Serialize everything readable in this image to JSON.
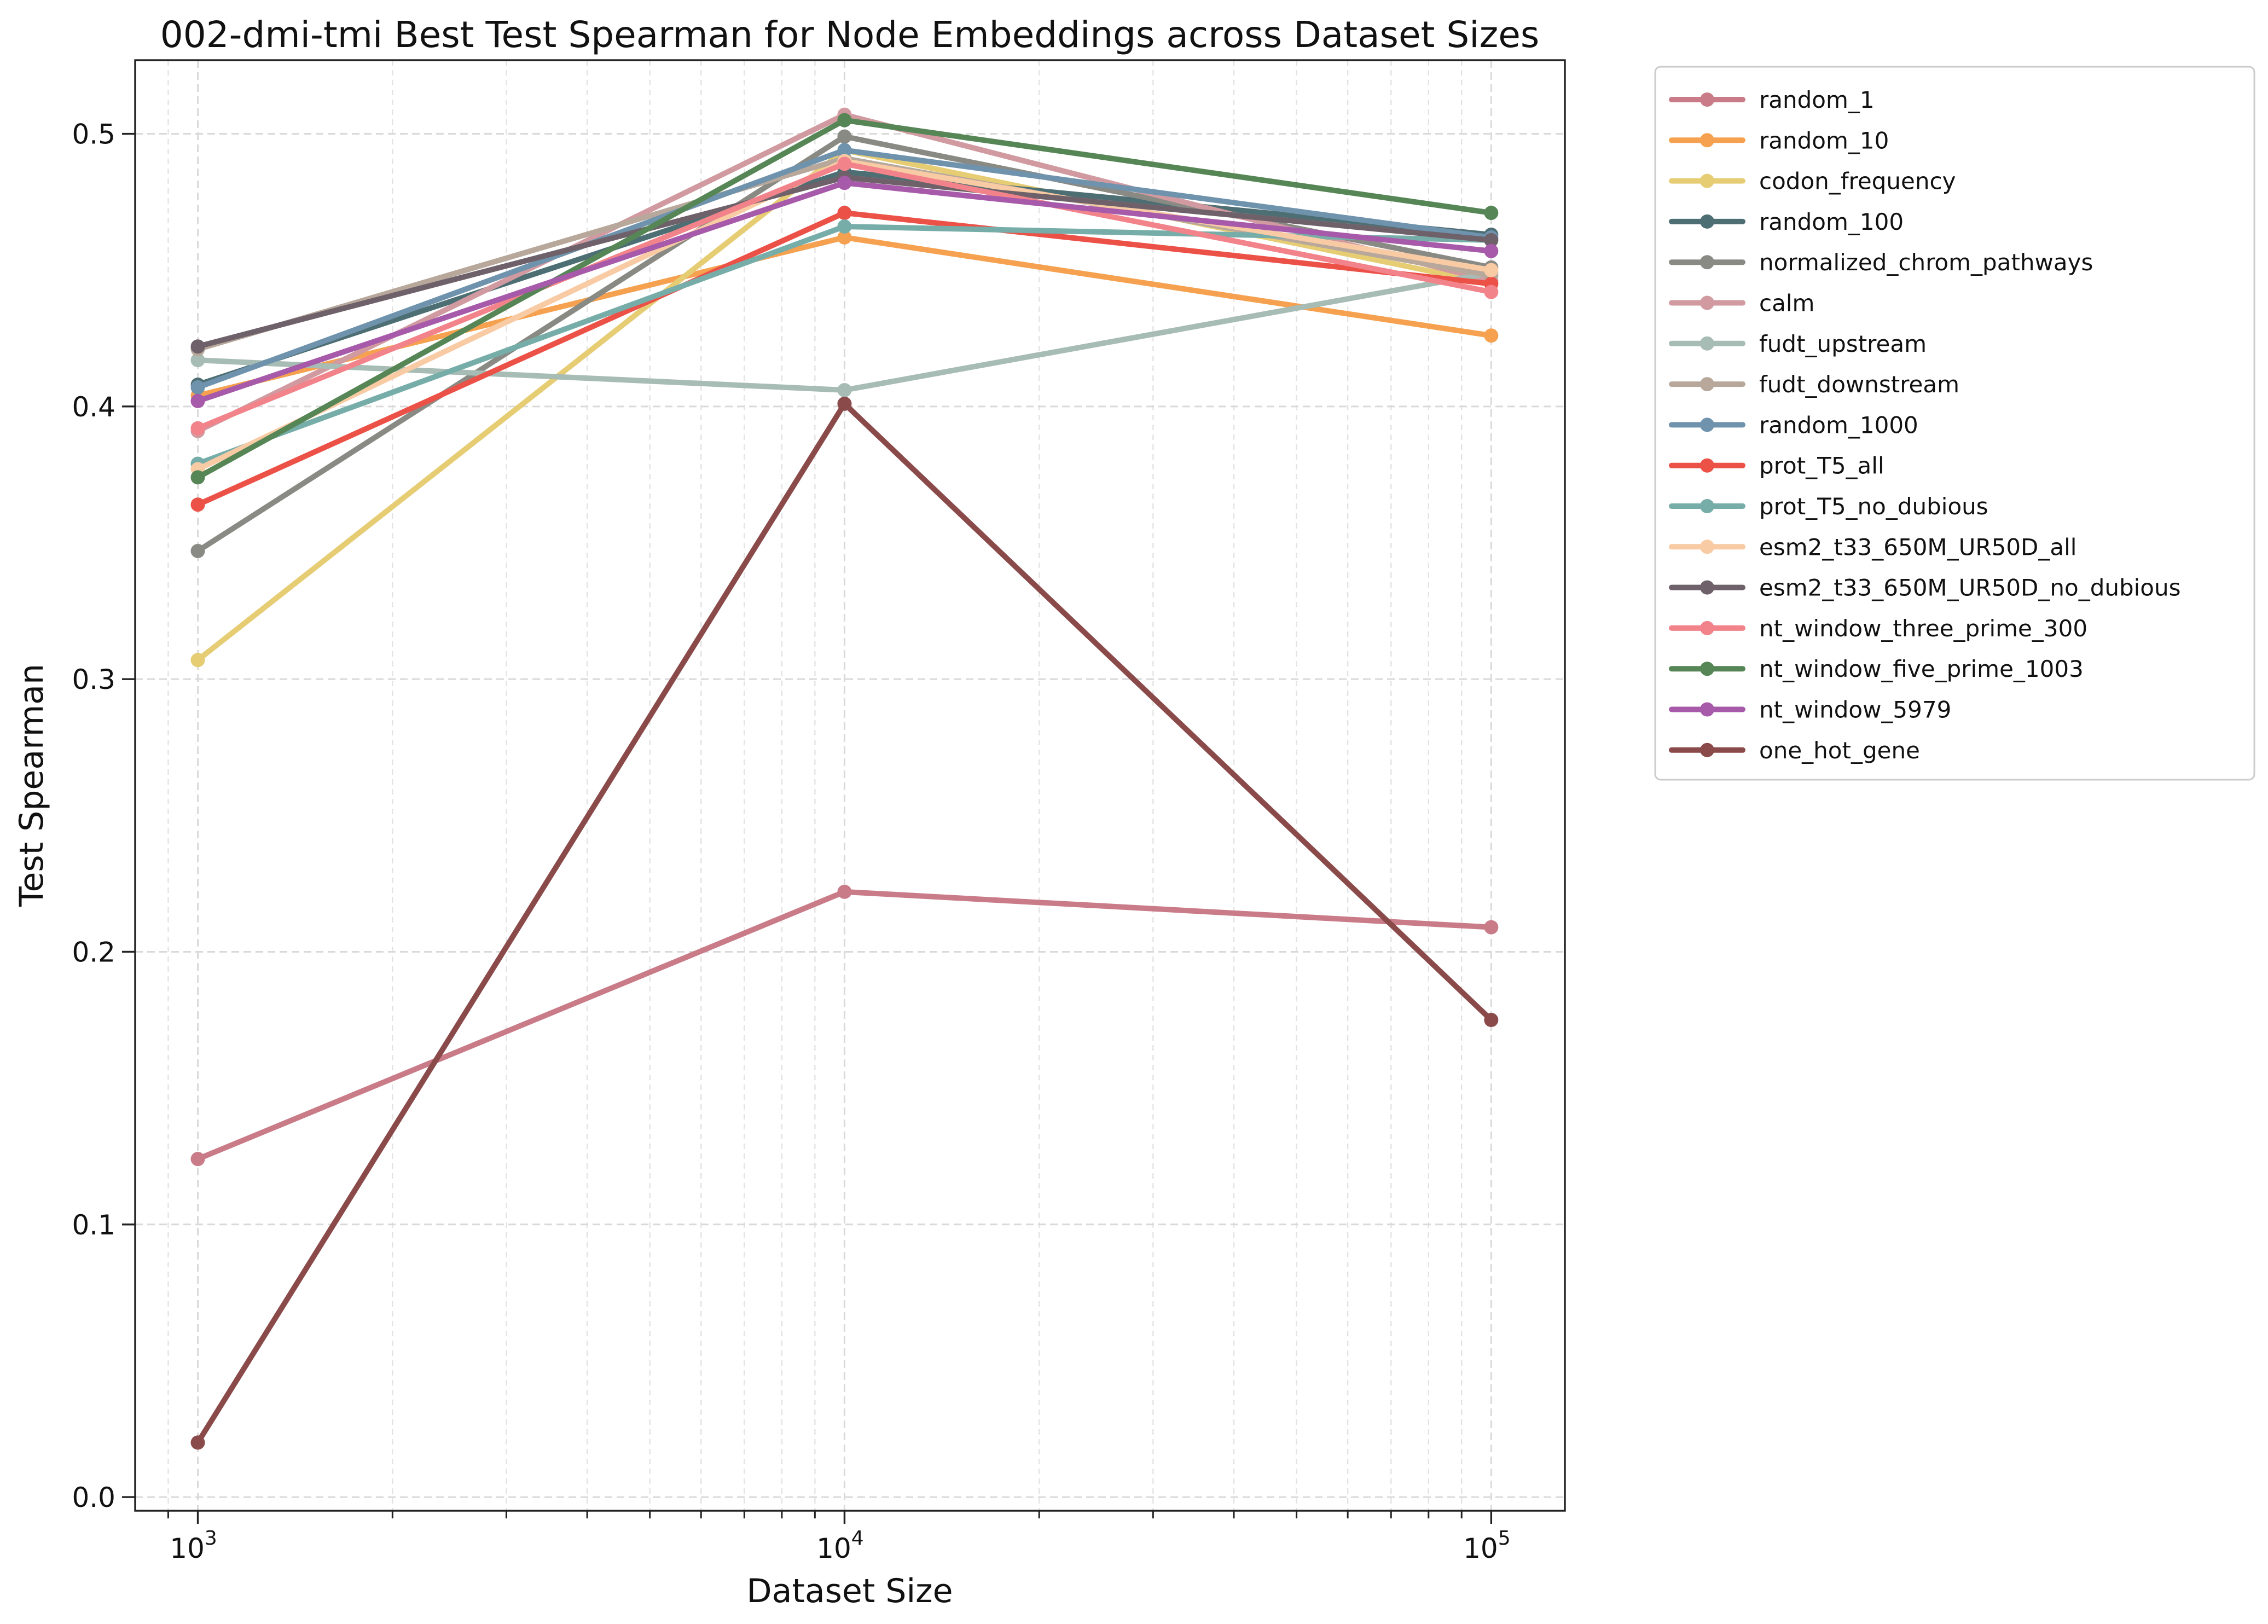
{
  "chart_data": {
    "type": "line",
    "title": "002-dmi-tmi Best Test Spearman for Node Embeddings across Dataset Sizes",
    "xlabel": "Dataset Size",
    "ylabel": "Test Spearman",
    "xscale": "log",
    "x": [
      1000,
      10000,
      100000
    ],
    "xlim": [
      800,
      130000
    ],
    "ylim": [
      -0.005,
      0.527
    ],
    "xticks": [
      {
        "value": 1000,
        "base": "10",
        "exp": "3"
      },
      {
        "value": 10000,
        "base": "10",
        "exp": "4"
      },
      {
        "value": 100000,
        "base": "10",
        "exp": "5"
      }
    ],
    "yticks": [
      {
        "value": 0.0,
        "label": "0.0"
      },
      {
        "value": 0.1,
        "label": "0.1"
      },
      {
        "value": 0.2,
        "label": "0.2"
      },
      {
        "value": 0.3,
        "label": "0.3"
      },
      {
        "value": 0.4,
        "label": "0.4"
      },
      {
        "value": 0.5,
        "label": "0.5"
      }
    ],
    "grid": true,
    "legend_position": "outside right, top",
    "series": [
      {
        "name": "random_1",
        "color": "#c97b88",
        "values": [
          0.124,
          0.222,
          0.209
        ]
      },
      {
        "name": "random_10",
        "color": "#f5a14f",
        "values": [
          0.404,
          0.462,
          0.426
        ]
      },
      {
        "name": "codon_frequency",
        "color": "#e6cd74",
        "values": [
          0.307,
          0.494,
          0.445
        ]
      },
      {
        "name": "random_100",
        "color": "#4d6e73",
        "values": [
          0.408,
          0.486,
          0.463
        ]
      },
      {
        "name": "normalized_chrom_pathways",
        "color": "#8a8a85",
        "values": [
          0.347,
          0.499,
          0.451
        ]
      },
      {
        "name": "calm",
        "color": "#d19aa0",
        "values": [
          0.391,
          0.507,
          0.446
        ]
      },
      {
        "name": "fudt_upstream",
        "color": "#a7bcb4",
        "values": [
          0.417,
          0.406,
          0.449
        ]
      },
      {
        "name": "fudt_downstream",
        "color": "#b7a89b",
        "values": [
          0.421,
          0.491,
          0.448
        ]
      },
      {
        "name": "random_1000",
        "color": "#6f93ad",
        "values": [
          0.407,
          0.494,
          0.462
        ]
      },
      {
        "name": "prot_T5_all",
        "color": "#ec5147",
        "values": [
          0.364,
          0.471,
          0.445
        ]
      },
      {
        "name": "prot_T5_no_dubious",
        "color": "#77ada9",
        "values": [
          0.379,
          0.466,
          0.461
        ]
      },
      {
        "name": "esm2_t33_650M_UR50D_all",
        "color": "#f8cba4",
        "values": [
          0.377,
          0.49,
          0.45
        ]
      },
      {
        "name": "esm2_t33_650M_UR50D_no_dubious",
        "color": "#6e6169",
        "values": [
          0.422,
          0.484,
          0.461
        ]
      },
      {
        "name": "nt_window_three_prime_300",
        "color": "#f2838a",
        "values": [
          0.392,
          0.489,
          0.442
        ]
      },
      {
        "name": "nt_window_five_prime_1003",
        "color": "#568656",
        "values": [
          0.374,
          0.505,
          0.471
        ]
      },
      {
        "name": "nt_window_5979",
        "color": "#a65aa9",
        "values": [
          0.402,
          0.482,
          0.457
        ]
      },
      {
        "name": "one_hot_gene",
        "color": "#8b4a4a",
        "values": [
          0.02,
          0.401,
          0.175
        ]
      }
    ]
  }
}
